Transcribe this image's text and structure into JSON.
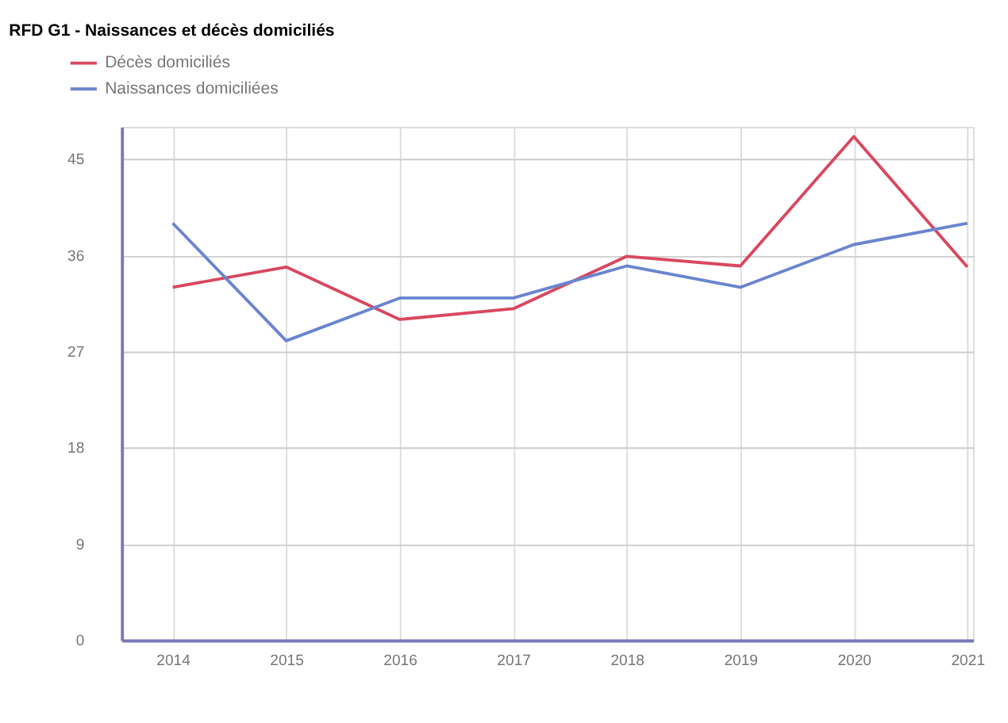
{
  "chart_data": {
    "type": "line",
    "title": "RFD G1 - Naissances et décès domiciliés",
    "categories": [
      "2014",
      "2015",
      "2016",
      "2017",
      "2018",
      "2019",
      "2020",
      "2021"
    ],
    "series": [
      {
        "name": "Décès domiciliés",
        "color": "#d9475f",
        "values": [
          33,
          34.9,
          30,
          31,
          35.9,
          35,
          47.1,
          34.9
        ]
      },
      {
        "name": "Naissances domiciliées",
        "color": "#6a85cf",
        "values": [
          39,
          28,
          32,
          32,
          35,
          33,
          37,
          39
        ]
      }
    ],
    "ylim": [
      0,
      48
    ],
    "yticks": [
      0,
      9,
      18,
      27,
      36,
      45
    ],
    "grid": true,
    "legend": "top left",
    "marker": "none",
    "line_style": "solid"
  }
}
